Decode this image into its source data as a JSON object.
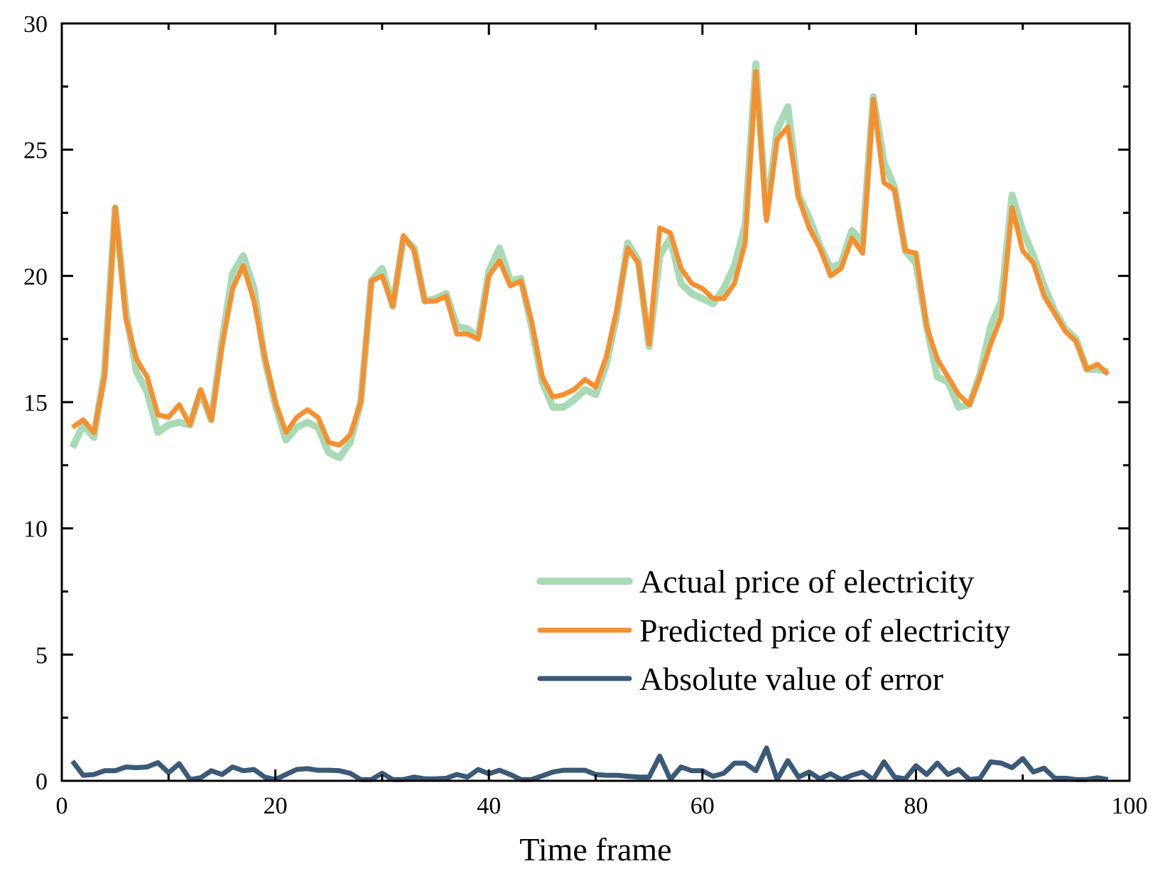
{
  "chart_data": {
    "type": "line",
    "title": "",
    "xlabel": "Time frame",
    "ylabel": "",
    "xlim": [
      0,
      100
    ],
    "ylim": [
      0,
      30
    ],
    "xticks": [
      0,
      20,
      40,
      60,
      80,
      100
    ],
    "yticks": [
      0,
      5,
      10,
      15,
      20,
      25,
      30
    ],
    "grid": false,
    "legend_position": "lower-right",
    "series": [
      {
        "name": "Actual price of electricity",
        "color": "#a8dbb5",
        "values": [
          13.2,
          14.1,
          13.6,
          16.2,
          22.7,
          18.6,
          16.2,
          15.4,
          13.8,
          14.1,
          14.2,
          14.1,
          15.4,
          14.3,
          17.4,
          20.1,
          20.8,
          19.5,
          16.7,
          14.9,
          13.5,
          14.0,
          14.2,
          14.0,
          13.0,
          12.8,
          13.4,
          15.0,
          19.8,
          20.3,
          18.8,
          21.5,
          21.1,
          19.0,
          19.1,
          19.3,
          18.0,
          17.9,
          17.6,
          20.2,
          21.1,
          19.8,
          19.9,
          18.0,
          15.8,
          14.8,
          14.8,
          15.1,
          15.5,
          15.3,
          16.5,
          18.5,
          21.3,
          20.6,
          17.2,
          20.8,
          21.5,
          19.7,
          19.3,
          19.1,
          18.9,
          19.5,
          20.4,
          22.0,
          28.4,
          22.4,
          25.8,
          26.7,
          23.2,
          22.3,
          21.2,
          20.3,
          20.5,
          21.8,
          21.3,
          27.1,
          24.5,
          23.5,
          21.0,
          20.5,
          18.0,
          16.0,
          15.8,
          14.8,
          14.9,
          16.1,
          18.0,
          19.0,
          23.2,
          21.8,
          20.8,
          19.6,
          18.6,
          17.9,
          17.5,
          16.3,
          16.3,
          16.2
        ]
      },
      {
        "name": "Predicted price of electricity",
        "color": "#f6902f",
        "values": [
          14.0,
          14.3,
          13.8,
          16.0,
          22.7,
          18.3,
          16.7,
          16.0,
          14.5,
          14.4,
          14.9,
          14.1,
          15.5,
          14.3,
          17.2,
          19.5,
          20.4,
          19.0,
          16.8,
          15.0,
          13.8,
          14.4,
          14.7,
          14.4,
          13.4,
          13.3,
          13.7,
          15.0,
          19.8,
          20.0,
          18.8,
          21.6,
          21.0,
          19.0,
          19.0,
          19.2,
          17.7,
          17.7,
          17.5,
          20.0,
          20.6,
          19.6,
          19.8,
          18.2,
          16.0,
          15.2,
          15.3,
          15.5,
          15.9,
          15.6,
          16.8,
          18.7,
          21.1,
          20.5,
          17.3,
          21.9,
          21.7,
          20.3,
          19.7,
          19.5,
          19.1,
          19.1,
          19.7,
          21.3,
          28.1,
          22.2,
          25.4,
          25.9,
          23.1,
          21.9,
          21.1,
          20.0,
          20.3,
          21.5,
          20.9,
          27.0,
          23.7,
          23.4,
          21.0,
          20.9,
          18.0,
          16.7,
          16.0,
          15.3,
          14.9,
          16.0,
          17.3,
          18.4,
          22.7,
          21.0,
          20.5,
          19.2,
          18.5,
          17.8,
          17.4,
          16.3,
          16.5,
          16.1
        ]
      },
      {
        "name": "Absolute value of error",
        "color": "#3b5a78",
        "values": [
          0.78,
          0.22,
          0.25,
          0.4,
          0.4,
          0.55,
          0.52,
          0.55,
          0.72,
          0.32,
          0.68,
          0.05,
          0.12,
          0.4,
          0.25,
          0.55,
          0.4,
          0.45,
          0.15,
          0.05,
          0.25,
          0.45,
          0.48,
          0.42,
          0.42,
          0.4,
          0.3,
          0.05,
          0.05,
          0.3,
          0.05,
          0.05,
          0.15,
          0.08,
          0.08,
          0.1,
          0.25,
          0.15,
          0.45,
          0.28,
          0.42,
          0.25,
          0.05,
          0.05,
          0.2,
          0.35,
          0.42,
          0.42,
          0.42,
          0.25,
          0.22,
          0.22,
          0.18,
          0.15,
          0.15,
          0.98,
          0.05,
          0.55,
          0.4,
          0.4,
          0.18,
          0.3,
          0.7,
          0.7,
          0.4,
          1.3,
          0.05,
          0.8,
          0.15,
          0.35,
          0.08,
          0.28,
          0.05,
          0.22,
          0.35,
          0.05,
          0.75,
          0.15,
          0.08,
          0.6,
          0.25,
          0.7,
          0.25,
          0.45,
          0.05,
          0.1,
          0.75,
          0.7,
          0.52,
          0.88,
          0.35,
          0.5,
          0.1,
          0.1,
          0.05,
          0.05,
          0.12,
          0.05
        ]
      }
    ]
  }
}
